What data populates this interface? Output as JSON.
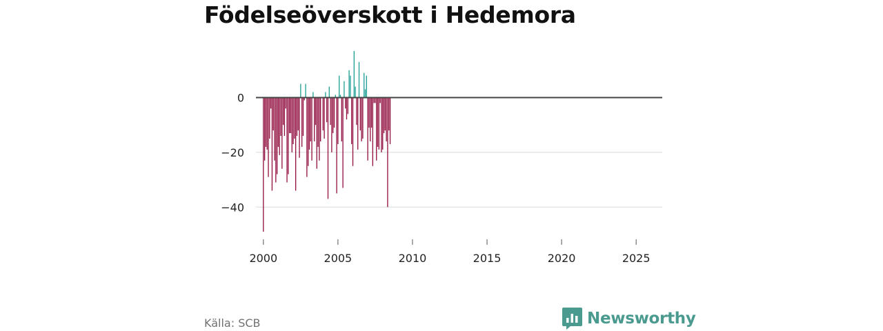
{
  "title": "Födelseöverskott i Hedemora",
  "source": "Källa: SCB",
  "brand": {
    "name": "Newsworthy",
    "icon": "newsworthy-logo-icon",
    "color": "#4a9a8f"
  },
  "colors": {
    "positive": "#1a9e93",
    "negative": "#8f0c3d",
    "zero_line": "#444444",
    "grid": "#d9d9d9",
    "tick_text": "#222222"
  },
  "chart_data": {
    "type": "bar",
    "title": "Födelseöverskott i Hedemora",
    "xlabel": "",
    "ylabel": "",
    "frequency": "monthly",
    "x_start": 2000,
    "xlim": [
      1999.5,
      2026.75
    ],
    "ylim": [
      -50,
      18
    ],
    "xticks": [
      2000,
      2005,
      2010,
      2015,
      2020,
      2025
    ],
    "yticks": [
      0,
      -20,
      -40
    ],
    "ytick_labels": [
      "0",
      "−20",
      "−40"
    ],
    "grid": "horizontal",
    "values": [
      -49,
      -23,
      -18,
      -19,
      -29,
      -15,
      -4,
      -34,
      -12,
      -23,
      -31,
      -28,
      -18,
      -21,
      -14,
      -26,
      -10,
      -14,
      -4,
      -31,
      -28,
      -13,
      -13,
      -20,
      -17,
      -15,
      -34,
      -14,
      -12,
      -22,
      5,
      -18,
      -14,
      -1,
      5,
      -29,
      -25,
      -19,
      -16,
      -23,
      2,
      -16,
      -10,
      -26,
      -18,
      -23,
      -16,
      0,
      -12,
      -15,
      2,
      -9,
      -37,
      4,
      -10,
      -20,
      -13,
      -11,
      1,
      -35,
      -17,
      8,
      1,
      -16,
      -33,
      6,
      -4,
      -8,
      -6,
      10,
      8,
      -17,
      -25,
      17,
      4,
      -10,
      -19,
      13,
      -12,
      -16,
      -15,
      9,
      3,
      8,
      -23,
      -11,
      -16,
      -11,
      -25,
      -2,
      -2,
      -23,
      -18,
      -19,
      -2,
      -20,
      -19,
      -13,
      -12,
      -16,
      -40,
      -12,
      -17
    ]
  }
}
